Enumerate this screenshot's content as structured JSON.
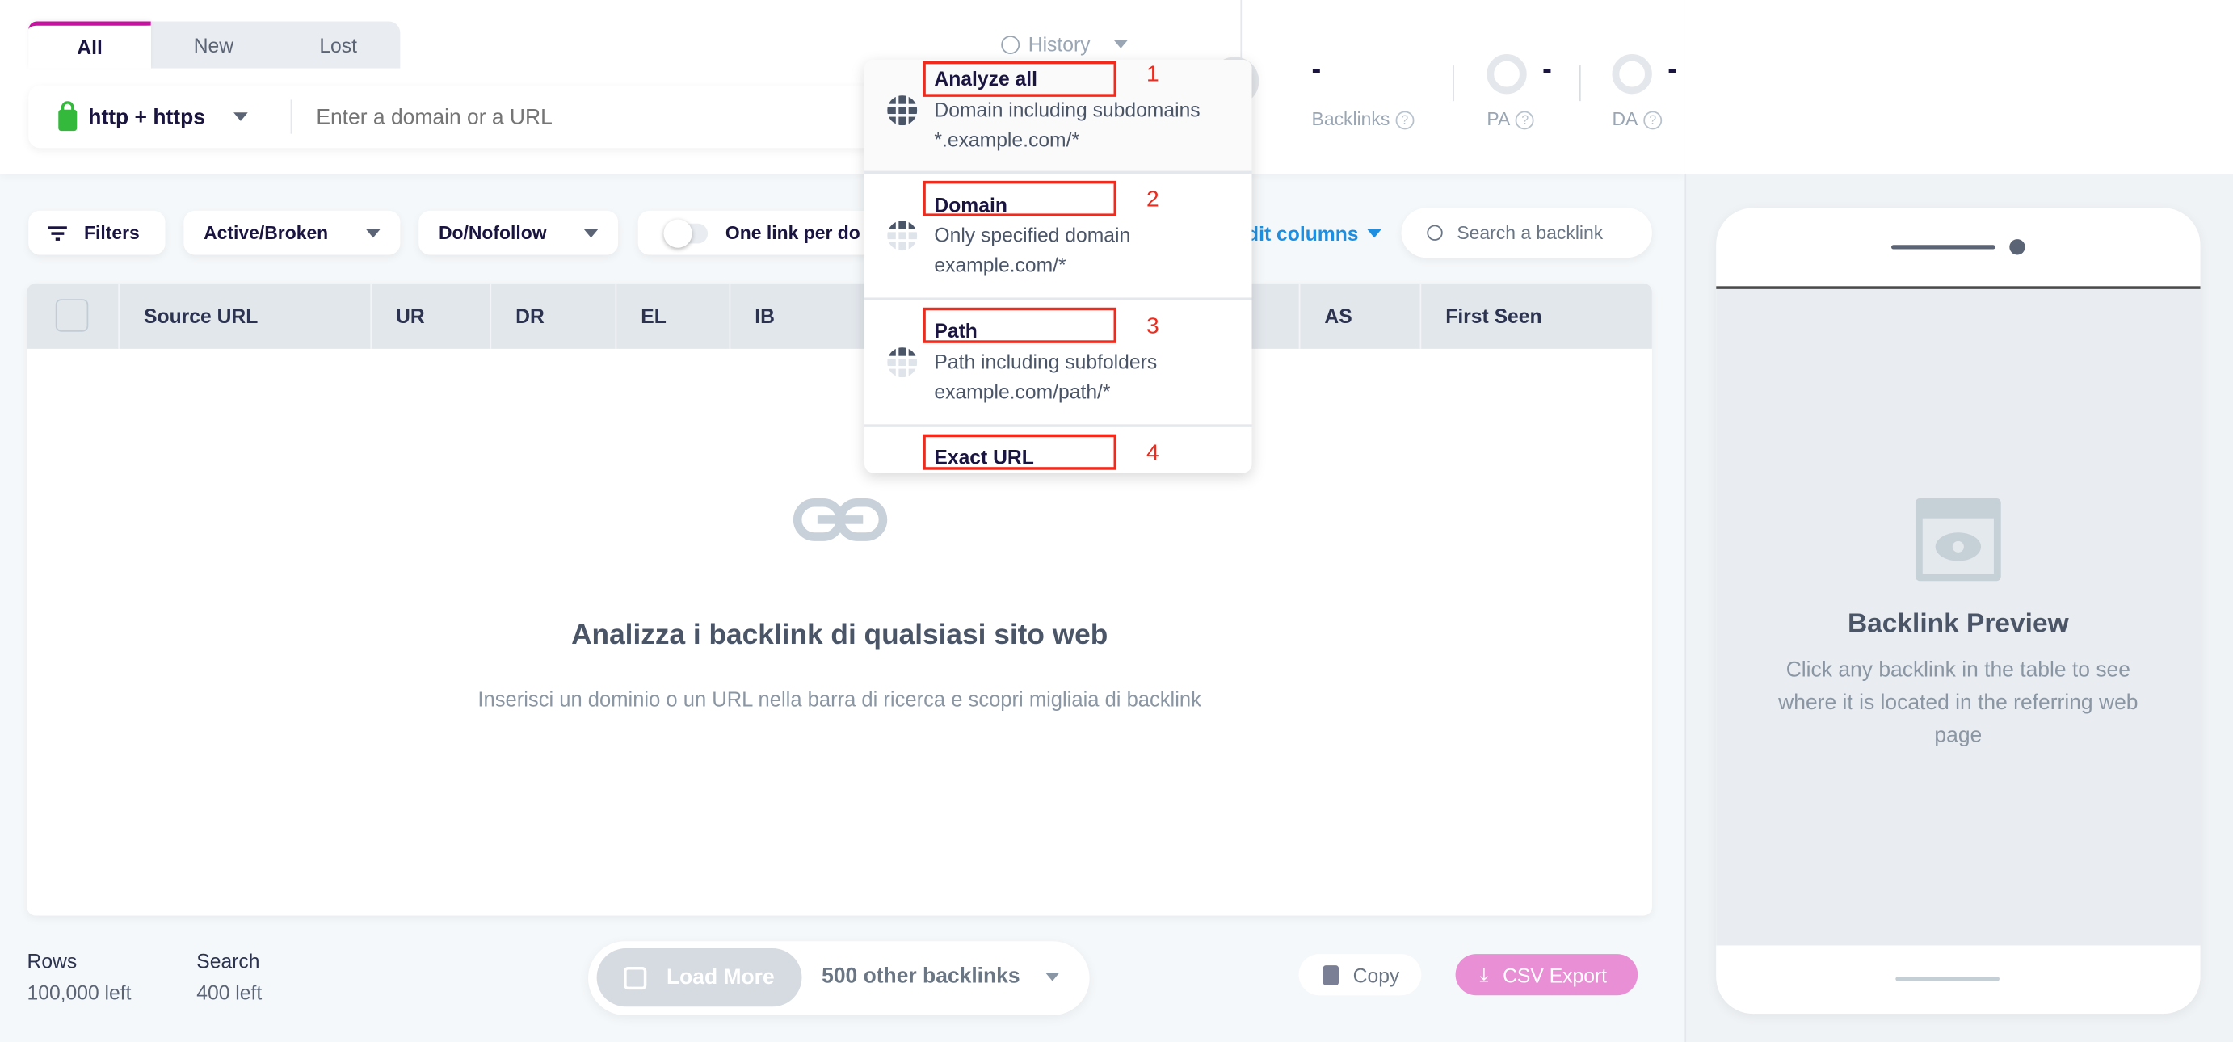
{
  "tabs": [
    {
      "label": "All",
      "active": true
    },
    {
      "label": "New"
    },
    {
      "label": "Lost"
    }
  ],
  "search": {
    "protocol": "http + https",
    "placeholder": "Enter a domain or a URL"
  },
  "history": {
    "label": "History"
  },
  "stats": [
    {
      "value": "-",
      "label": "Backlinks"
    },
    {
      "value": "-",
      "label": "PA"
    },
    {
      "value": "-",
      "label": "DA"
    }
  ],
  "dropdown": [
    {
      "title": "Analyze all",
      "desc": "Domain including subdomains",
      "example": "*.example.com/*",
      "number": "1"
    },
    {
      "title": "Domain",
      "desc": "Only specified domain",
      "example": "example.com/*",
      "number": "2"
    },
    {
      "title": "Path",
      "desc": "Path including subfolders",
      "example": "example.com/path/*",
      "number": "3"
    },
    {
      "title": "Exact URL",
      "number": "4"
    }
  ],
  "filters": {
    "filters": "Filters",
    "active_broken": "Active/Broken",
    "do_nofollow": "Do/Nofollow",
    "one_link": "One link per do",
    "edit_columns": "Edit columns",
    "search_placeholder": "Search a backlink"
  },
  "columns": [
    "Source URL",
    "UR",
    "DR",
    "EL",
    "IB",
    "AS",
    "First Seen"
  ],
  "empty": {
    "title": "Analizza i backlink di qualsiasi sito web",
    "subtitle": "Inserisci un dominio o un URL nella barra di ricerca e scopri migliaia di backlink"
  },
  "footer": {
    "rows_label": "Rows",
    "rows_value": "100,000 left",
    "search_label": "Search",
    "search_value": "400 left",
    "load_more": "Load More",
    "other": "500 other backlinks",
    "copy": "Copy",
    "csv": "CSV Export"
  },
  "preview": {
    "title": "Backlink Preview",
    "text": "Click any backlink in the table to see where it is located in the referring web page"
  },
  "colors": {
    "accent": "#c4139f",
    "link": "#1e8fe0",
    "csv": "#e88fd5",
    "highlight": "#f02a1c"
  }
}
